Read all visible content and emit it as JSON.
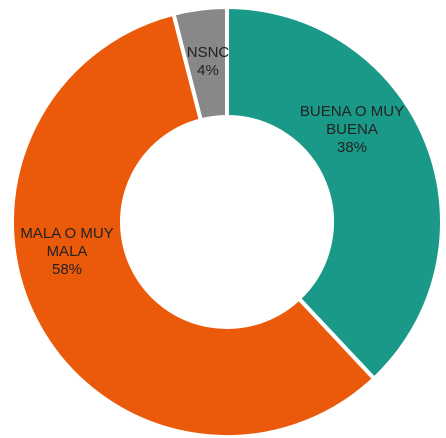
{
  "chart_data": {
    "type": "donut",
    "categories": [
      "BUENA O MUY BUENA",
      "MALA O MUY MALA",
      "NSNC"
    ],
    "values": [
      38,
      58,
      4
    ],
    "value_labels": [
      "38%",
      "58%",
      "4%"
    ],
    "colors": [
      "#1a9988",
      "#eb5a0a",
      "#888888"
    ]
  }
}
